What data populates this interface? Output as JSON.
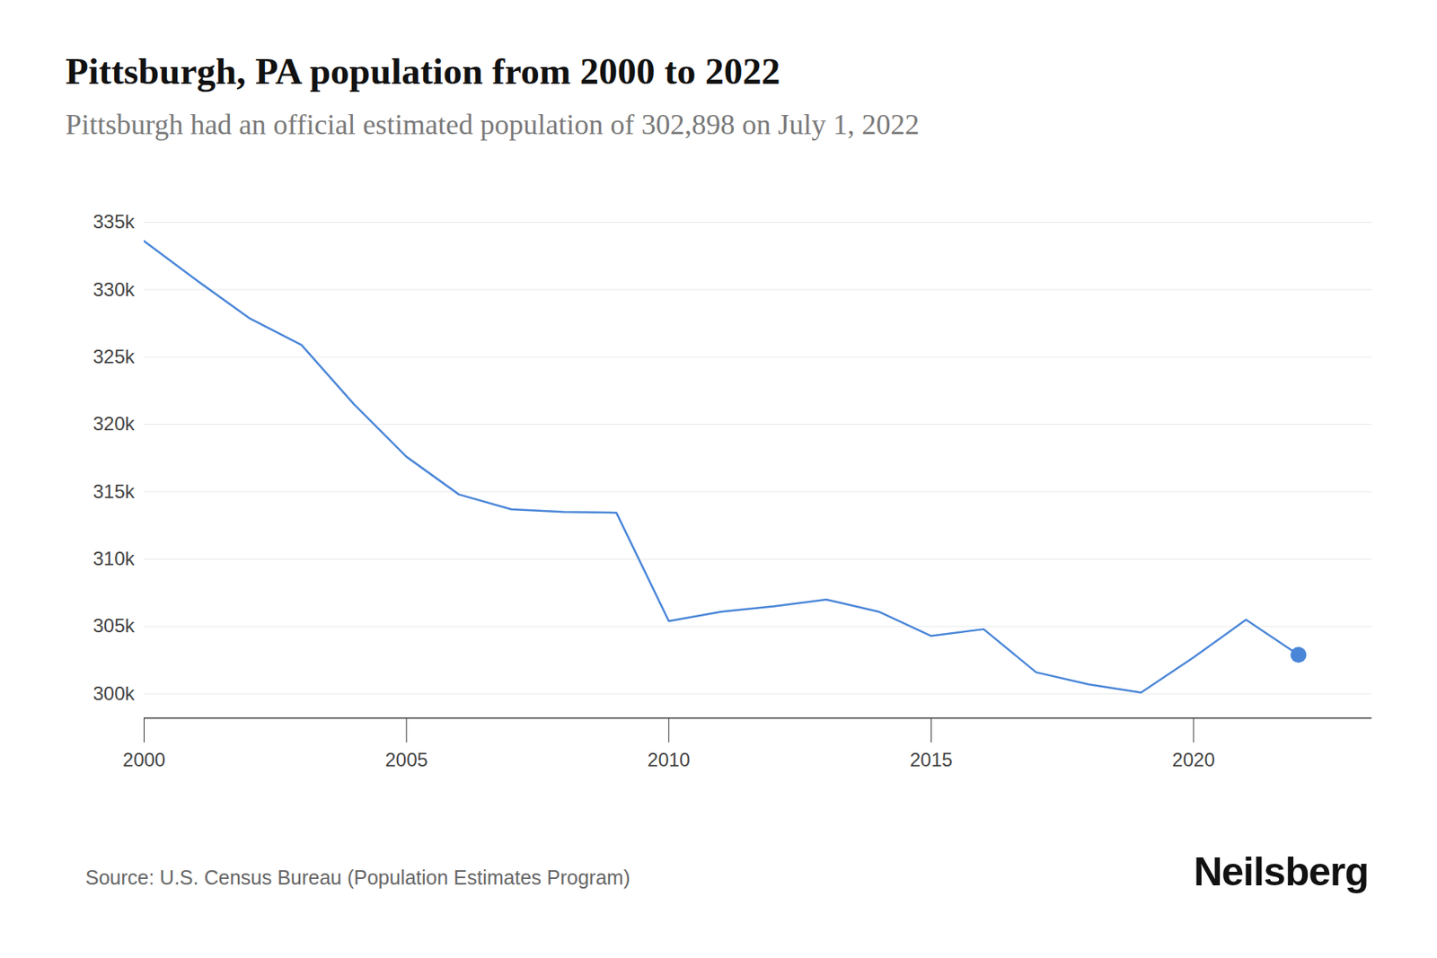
{
  "chart_data": {
    "type": "line",
    "title": "Pittsburgh, PA population from 2000 to 2022",
    "subtitle": "Pittsburgh had an official estimated population of 302,898 on July 1, 2022",
    "source": "Source: U.S. Census Bureau (Population Estimates Program)",
    "brand": "Neilsberg",
    "x": [
      2000,
      2001,
      2002,
      2003,
      2004,
      2005,
      2006,
      2007,
      2008,
      2009,
      2010,
      2011,
      2012,
      2013,
      2014,
      2015,
      2016,
      2017,
      2018,
      2019,
      2020,
      2021,
      2022
    ],
    "values": [
      333600,
      330700,
      327900,
      325900,
      321500,
      317600,
      314800,
      313700,
      313500,
      313450,
      305400,
      306100,
      306500,
      307000,
      306100,
      304300,
      304800,
      301600,
      300700,
      300100,
      302700,
      305500,
      302898
    ],
    "color": "#4a86d8",
    "marker": "end",
    "grid": true,
    "xlim": [
      2000,
      2023.4
    ],
    "xticks": [
      2000,
      2005,
      2010,
      2015,
      2020
    ],
    "ylim": [
      298200,
      335000
    ],
    "yticks": [
      {
        "value": 300000,
        "label": "300k"
      },
      {
        "value": 305000,
        "label": "305k"
      },
      {
        "value": 310000,
        "label": "310k"
      },
      {
        "value": 315000,
        "label": "315k"
      },
      {
        "value": 320000,
        "label": "320k"
      },
      {
        "value": 325000,
        "label": "325k"
      },
      {
        "value": 330000,
        "label": "330k"
      },
      {
        "value": 335000,
        "label": "335k"
      }
    ]
  }
}
